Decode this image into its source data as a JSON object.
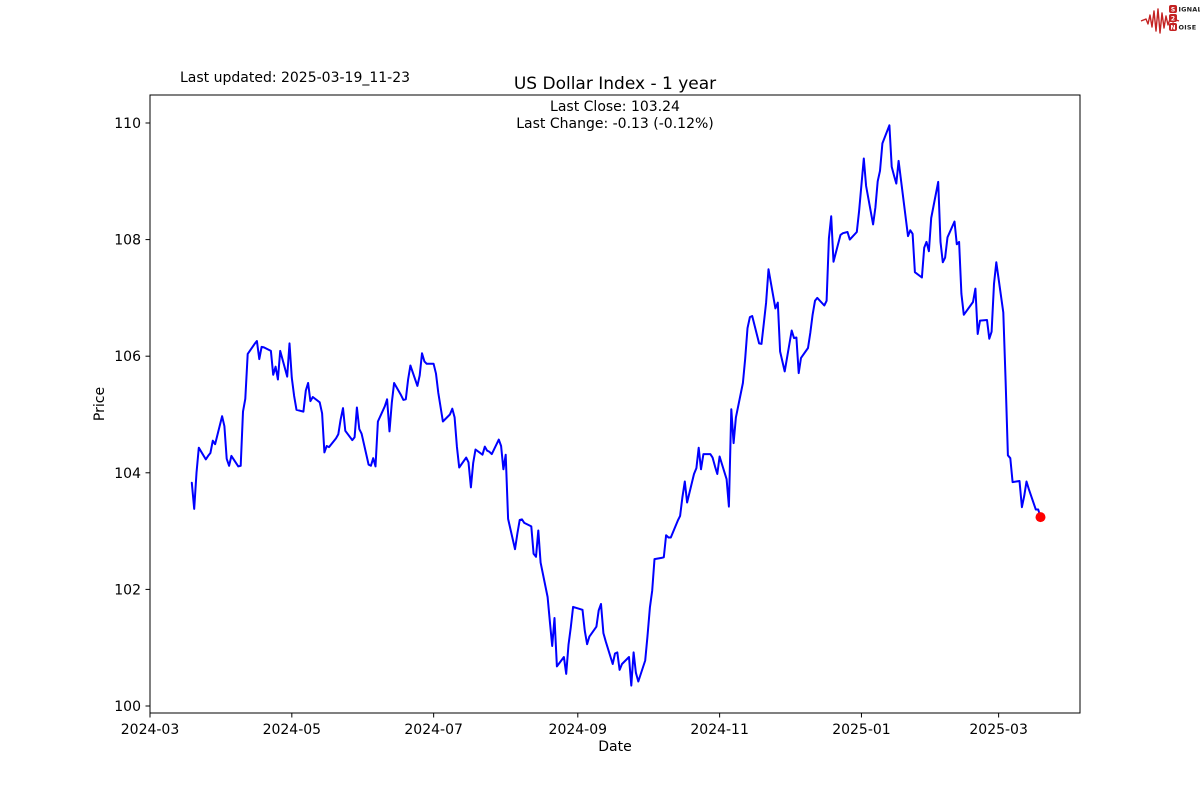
{
  "header": {
    "last_updated": "Last updated: 2025-03-19_11-23"
  },
  "logo": {
    "name": "signal-2-noise",
    "initial1": "S",
    "rest1": "IGNAL",
    "middle": "2",
    "initial2": "N",
    "rest2": "OISE",
    "accent_color": "#c42222"
  },
  "chart_data": {
    "type": "line",
    "title": "US Dollar Index - 1 year",
    "subtitle_line1": "Last Close: 103.24",
    "subtitle_line2": "Last Change: -0.13 (-0.12%)",
    "xlabel": "Date",
    "ylabel": "Price",
    "grid": false,
    "legend": "none",
    "line_color": "#0000ff",
    "marker_color": "#ff0000",
    "ylim": [
      99.88,
      110.48
    ],
    "xlim": [
      "2024-03-01",
      "2025-04-05"
    ],
    "y_ticks": [
      100,
      102,
      104,
      106,
      108,
      110
    ],
    "x_ticks": [
      {
        "label": "2024-03",
        "date": "2024-03-01"
      },
      {
        "label": "2024-05",
        "date": "2024-05-01"
      },
      {
        "label": "2024-07",
        "date": "2024-07-01"
      },
      {
        "label": "2024-09",
        "date": "2024-09-01"
      },
      {
        "label": "2024-11",
        "date": "2024-11-01"
      },
      {
        "label": "2025-01",
        "date": "2025-01-01"
      },
      {
        "label": "2025-03",
        "date": "2025-03-01"
      }
    ],
    "last_close": 103.24,
    "last_change": -0.13,
    "last_change_pct": "-0.12%",
    "series": [
      {
        "name": "US Dollar Index",
        "points": [
          [
            "2024-03-19",
            103.83
          ],
          [
            "2024-03-20",
            103.38
          ],
          [
            "2024-03-21",
            104.0
          ],
          [
            "2024-03-22",
            104.43
          ],
          [
            "2024-03-25",
            104.23
          ],
          [
            "2024-03-26",
            104.29
          ],
          [
            "2024-03-27",
            104.34
          ],
          [
            "2024-03-28",
            104.55
          ],
          [
            "2024-03-29",
            104.49
          ],
          [
            "2024-04-01",
            104.97
          ],
          [
            "2024-04-02",
            104.8
          ],
          [
            "2024-04-03",
            104.24
          ],
          [
            "2024-04-04",
            104.12
          ],
          [
            "2024-04-05",
            104.29
          ],
          [
            "2024-04-08",
            104.11
          ],
          [
            "2024-04-09",
            104.12
          ],
          [
            "2024-04-10",
            105.05
          ],
          [
            "2024-04-11",
            105.27
          ],
          [
            "2024-04-12",
            106.04
          ],
          [
            "2024-04-15",
            106.21
          ],
          [
            "2024-04-16",
            106.26
          ],
          [
            "2024-04-17",
            105.95
          ],
          [
            "2024-04-18",
            106.16
          ],
          [
            "2024-04-19",
            106.15
          ],
          [
            "2024-04-22",
            106.09
          ],
          [
            "2024-04-23",
            105.68
          ],
          [
            "2024-04-24",
            105.82
          ],
          [
            "2024-04-25",
            105.6
          ],
          [
            "2024-04-26",
            106.09
          ],
          [
            "2024-04-29",
            105.65
          ],
          [
            "2024-04-30",
            106.22
          ],
          [
            "2024-05-01",
            105.63
          ],
          [
            "2024-05-02",
            105.32
          ],
          [
            "2024-05-03",
            105.08
          ],
          [
            "2024-05-06",
            105.05
          ],
          [
            "2024-05-07",
            105.41
          ],
          [
            "2024-05-08",
            105.54
          ],
          [
            "2024-05-09",
            105.23
          ],
          [
            "2024-05-10",
            105.3
          ],
          [
            "2024-05-13",
            105.21
          ],
          [
            "2024-05-14",
            105.02
          ],
          [
            "2024-05-15",
            104.35
          ],
          [
            "2024-05-16",
            104.46
          ],
          [
            "2024-05-17",
            104.44
          ],
          [
            "2024-05-20",
            104.59
          ],
          [
            "2024-05-21",
            104.66
          ],
          [
            "2024-05-22",
            104.91
          ],
          [
            "2024-05-23",
            105.11
          ],
          [
            "2024-05-24",
            104.72
          ],
          [
            "2024-05-27",
            104.56
          ],
          [
            "2024-05-28",
            104.61
          ],
          [
            "2024-05-29",
            105.12
          ],
          [
            "2024-05-30",
            104.75
          ],
          [
            "2024-05-31",
            104.67
          ],
          [
            "2024-06-03",
            104.14
          ],
          [
            "2024-06-04",
            104.12
          ],
          [
            "2024-06-05",
            104.25
          ],
          [
            "2024-06-06",
            104.11
          ],
          [
            "2024-06-07",
            104.88
          ],
          [
            "2024-06-10",
            105.14
          ],
          [
            "2024-06-11",
            105.26
          ],
          [
            "2024-06-12",
            104.71
          ],
          [
            "2024-06-13",
            105.2
          ],
          [
            "2024-06-14",
            105.54
          ],
          [
            "2024-06-17",
            105.33
          ],
          [
            "2024-06-18",
            105.25
          ],
          [
            "2024-06-19",
            105.26
          ],
          [
            "2024-06-20",
            105.6
          ],
          [
            "2024-06-21",
            105.84
          ],
          [
            "2024-06-24",
            105.49
          ],
          [
            "2024-06-25",
            105.67
          ],
          [
            "2024-06-26",
            106.05
          ],
          [
            "2024-06-27",
            105.91
          ],
          [
            "2024-06-28",
            105.87
          ],
          [
            "2024-07-01",
            105.87
          ],
          [
            "2024-07-02",
            105.7
          ],
          [
            "2024-07-03",
            105.37
          ],
          [
            "2024-07-05",
            104.88
          ],
          [
            "2024-07-08",
            105.0
          ],
          [
            "2024-07-09",
            105.1
          ],
          [
            "2024-07-10",
            104.95
          ],
          [
            "2024-07-11",
            104.45
          ],
          [
            "2024-07-12",
            104.09
          ],
          [
            "2024-07-15",
            104.26
          ],
          [
            "2024-07-16",
            104.18
          ],
          [
            "2024-07-17",
            103.75
          ],
          [
            "2024-07-18",
            104.17
          ],
          [
            "2024-07-19",
            104.4
          ],
          [
            "2024-07-22",
            104.31
          ],
          [
            "2024-07-23",
            104.45
          ],
          [
            "2024-07-24",
            104.38
          ],
          [
            "2024-07-25",
            104.36
          ],
          [
            "2024-07-26",
            104.32
          ],
          [
            "2024-07-29",
            104.57
          ],
          [
            "2024-07-30",
            104.46
          ],
          [
            "2024-07-31",
            104.06
          ],
          [
            "2024-08-01",
            104.31
          ],
          [
            "2024-08-02",
            103.21
          ],
          [
            "2024-08-05",
            102.69
          ],
          [
            "2024-08-06",
            102.96
          ],
          [
            "2024-08-07",
            103.19
          ],
          [
            "2024-08-08",
            103.2
          ],
          [
            "2024-08-09",
            103.14
          ],
          [
            "2024-08-12",
            103.08
          ],
          [
            "2024-08-13",
            102.61
          ],
          [
            "2024-08-14",
            102.56
          ],
          [
            "2024-08-15",
            103.01
          ],
          [
            "2024-08-16",
            102.46
          ],
          [
            "2024-08-19",
            101.87
          ],
          [
            "2024-08-20",
            101.44
          ],
          [
            "2024-08-21",
            101.03
          ],
          [
            "2024-08-22",
            101.51
          ],
          [
            "2024-08-23",
            100.68
          ],
          [
            "2024-08-26",
            100.84
          ],
          [
            "2024-08-27",
            100.55
          ],
          [
            "2024-08-28",
            101.05
          ],
          [
            "2024-08-29",
            101.35
          ],
          [
            "2024-08-30",
            101.7
          ],
          [
            "2024-09-03",
            101.65
          ],
          [
            "2024-09-04",
            101.29
          ],
          [
            "2024-09-05",
            101.06
          ],
          [
            "2024-09-06",
            101.19
          ],
          [
            "2024-09-09",
            101.36
          ],
          [
            "2024-09-10",
            101.64
          ],
          [
            "2024-09-11",
            101.75
          ],
          [
            "2024-09-12",
            101.25
          ],
          [
            "2024-09-13",
            101.11
          ],
          [
            "2024-09-16",
            100.72
          ],
          [
            "2024-09-17",
            100.9
          ],
          [
            "2024-09-18",
            100.92
          ],
          [
            "2024-09-19",
            100.62
          ],
          [
            "2024-09-20",
            100.72
          ],
          [
            "2024-09-23",
            100.84
          ],
          [
            "2024-09-24",
            100.35
          ],
          [
            "2024-09-25",
            100.92
          ],
          [
            "2024-09-26",
            100.57
          ],
          [
            "2024-09-27",
            100.42
          ],
          [
            "2024-09-30",
            100.78
          ],
          [
            "2024-10-01",
            101.2
          ],
          [
            "2024-10-02",
            101.69
          ],
          [
            "2024-10-03",
            101.98
          ],
          [
            "2024-10-04",
            102.52
          ],
          [
            "2024-10-07",
            102.54
          ],
          [
            "2024-10-08",
            102.55
          ],
          [
            "2024-10-09",
            102.93
          ],
          [
            "2024-10-10",
            102.89
          ],
          [
            "2024-10-11",
            102.89
          ],
          [
            "2024-10-14",
            103.18
          ],
          [
            "2024-10-15",
            103.26
          ],
          [
            "2024-10-16",
            103.58
          ],
          [
            "2024-10-17",
            103.85
          ],
          [
            "2024-10-18",
            103.49
          ],
          [
            "2024-10-21",
            103.98
          ],
          [
            "2024-10-22",
            104.08
          ],
          [
            "2024-10-23",
            104.43
          ],
          [
            "2024-10-24",
            104.06
          ],
          [
            "2024-10-25",
            104.32
          ],
          [
            "2024-10-28",
            104.32
          ],
          [
            "2024-10-29",
            104.26
          ],
          [
            "2024-10-30",
            104.11
          ],
          [
            "2024-10-31",
            103.98
          ],
          [
            "2024-11-01",
            104.28
          ],
          [
            "2024-11-04",
            103.89
          ],
          [
            "2024-11-05",
            103.42
          ],
          [
            "2024-11-06",
            105.09
          ],
          [
            "2024-11-07",
            104.51
          ],
          [
            "2024-11-08",
            104.95
          ],
          [
            "2024-11-11",
            105.54
          ],
          [
            "2024-11-12",
            105.96
          ],
          [
            "2024-11-13",
            106.48
          ],
          [
            "2024-11-14",
            106.67
          ],
          [
            "2024-11-15",
            106.69
          ],
          [
            "2024-11-18",
            106.22
          ],
          [
            "2024-11-19",
            106.21
          ],
          [
            "2024-11-20",
            106.56
          ],
          [
            "2024-11-21",
            106.92
          ],
          [
            "2024-11-22",
            107.49
          ],
          [
            "2024-11-25",
            106.82
          ],
          [
            "2024-11-26",
            106.92
          ],
          [
            "2024-11-27",
            106.08
          ],
          [
            "2024-11-29",
            105.74
          ],
          [
            "2024-12-02",
            106.44
          ],
          [
            "2024-12-03",
            106.31
          ],
          [
            "2024-12-04",
            106.32
          ],
          [
            "2024-12-05",
            105.71
          ],
          [
            "2024-12-06",
            105.97
          ],
          [
            "2024-12-09",
            106.14
          ],
          [
            "2024-12-10",
            106.4
          ],
          [
            "2024-12-11",
            106.71
          ],
          [
            "2024-12-12",
            106.95
          ],
          [
            "2024-12-13",
            107.0
          ],
          [
            "2024-12-16",
            106.87
          ],
          [
            "2024-12-17",
            106.95
          ],
          [
            "2024-12-18",
            108.02
          ],
          [
            "2024-12-19",
            108.4
          ],
          [
            "2024-12-20",
            107.62
          ],
          [
            "2024-12-23",
            108.08
          ],
          [
            "2024-12-24",
            108.11
          ],
          [
            "2024-12-26",
            108.13
          ],
          [
            "2024-12-27",
            108.0
          ],
          [
            "2024-12-30",
            108.13
          ],
          [
            "2024-12-31",
            108.49
          ],
          [
            "2025-01-02",
            109.39
          ],
          [
            "2025-01-03",
            108.92
          ],
          [
            "2025-01-06",
            108.26
          ],
          [
            "2025-01-07",
            108.55
          ],
          [
            "2025-01-08",
            109.0
          ],
          [
            "2025-01-09",
            109.18
          ],
          [
            "2025-01-10",
            109.65
          ],
          [
            "2025-01-13",
            109.96
          ],
          [
            "2025-01-14",
            109.25
          ],
          [
            "2025-01-15",
            109.1
          ],
          [
            "2025-01-16",
            108.96
          ],
          [
            "2025-01-17",
            109.35
          ],
          [
            "2025-01-21",
            108.06
          ],
          [
            "2025-01-22",
            108.16
          ],
          [
            "2025-01-23",
            108.1
          ],
          [
            "2025-01-24",
            107.44
          ],
          [
            "2025-01-27",
            107.35
          ],
          [
            "2025-01-28",
            107.86
          ],
          [
            "2025-01-29",
            107.96
          ],
          [
            "2025-01-30",
            107.8
          ],
          [
            "2025-01-31",
            108.37
          ],
          [
            "2025-02-03",
            108.99
          ],
          [
            "2025-02-04",
            107.96
          ],
          [
            "2025-02-05",
            107.61
          ],
          [
            "2025-02-06",
            107.69
          ],
          [
            "2025-02-07",
            108.04
          ],
          [
            "2025-02-10",
            108.31
          ],
          [
            "2025-02-11",
            107.92
          ],
          [
            "2025-02-12",
            107.96
          ],
          [
            "2025-02-13",
            107.07
          ],
          [
            "2025-02-14",
            106.71
          ],
          [
            "2025-02-18",
            106.93
          ],
          [
            "2025-02-19",
            107.16
          ],
          [
            "2025-02-20",
            106.38
          ],
          [
            "2025-02-21",
            106.61
          ],
          [
            "2025-02-24",
            106.62
          ],
          [
            "2025-02-25",
            106.3
          ],
          [
            "2025-02-26",
            106.42
          ],
          [
            "2025-02-27",
            107.24
          ],
          [
            "2025-02-28",
            107.61
          ],
          [
            "2025-03-03",
            106.75
          ],
          [
            "2025-03-04",
            105.58
          ],
          [
            "2025-03-05",
            104.3
          ],
          [
            "2025-03-06",
            104.25
          ],
          [
            "2025-03-07",
            103.84
          ],
          [
            "2025-03-10",
            103.86
          ],
          [
            "2025-03-11",
            103.41
          ],
          [
            "2025-03-12",
            103.6
          ],
          [
            "2025-03-13",
            103.85
          ],
          [
            "2025-03-14",
            103.72
          ],
          [
            "2025-03-17",
            103.37
          ],
          [
            "2025-03-18",
            103.37
          ],
          [
            "2025-03-19",
            103.24
          ]
        ]
      }
    ]
  }
}
